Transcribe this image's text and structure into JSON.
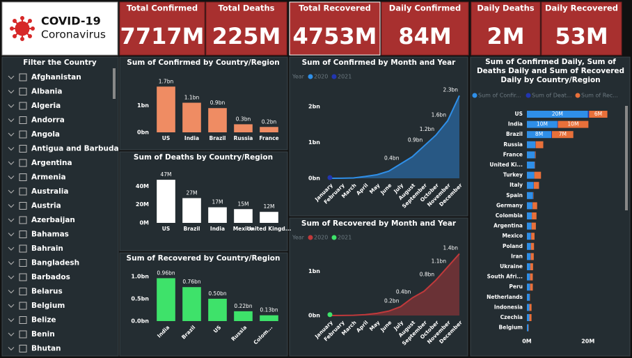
{
  "logo": {
    "title": "COVID-19",
    "subtitle": "Coronavirus"
  },
  "kpis": [
    {
      "label": "Total Confirmed",
      "value": "7717M"
    },
    {
      "label": "Total Deaths",
      "value": "225M"
    },
    {
      "label": "Total Recovered",
      "value": "4753M"
    },
    {
      "label": "Daily Confirmed",
      "value": "84M"
    },
    {
      "label": "Daily Deaths",
      "value": "2M"
    },
    {
      "label": "Daily Recovered",
      "value": "53M"
    }
  ],
  "filter": {
    "title": "Filter the Country",
    "items": [
      "Afghanistan",
      "Albania",
      "Algeria",
      "Andorra",
      "Angola",
      "Antigua and Barbuda",
      "Argentina",
      "Armenia",
      "Australia",
      "Austria",
      "Azerbaijan",
      "Bahamas",
      "Bahrain",
      "Bangladesh",
      "Barbados",
      "Belarus",
      "Belgium",
      "Belize",
      "Benin",
      "Bhutan"
    ]
  },
  "chart_data": [
    {
      "type": "bar",
      "title": "Sum of Confirmed by Country/Region",
      "categories": [
        "US",
        "India",
        "Brazil",
        "Russia",
        "France"
      ],
      "values": [
        1.7,
        1.1,
        0.9,
        0.3,
        0.2
      ],
      "value_labels": [
        "1.7bn",
        "1.1bn",
        "0.9bn",
        "0.3bn",
        "0.2bn"
      ],
      "color": "#ef8c63",
      "ylim": [
        0,
        2.2
      ],
      "yticks": [
        {
          "value": 0,
          "label": "0bn"
        },
        {
          "value": 1,
          "label": "1bn"
        }
      ]
    },
    {
      "type": "bar",
      "title": "Sum of Deaths by Country/Region",
      "categories": [
        "US",
        "Brazil",
        "India",
        "Mexico",
        "United Kingd..."
      ],
      "values": [
        47,
        27,
        17,
        15,
        12
      ],
      "value_labels": [
        "47M",
        "27M",
        "17M",
        "15M",
        "12M"
      ],
      "color": "#ffffff",
      "ylim": [
        0,
        60
      ],
      "yticks": [
        {
          "value": 0,
          "label": "0M"
        },
        {
          "value": 20,
          "label": "20M"
        },
        {
          "value": 40,
          "label": "40M"
        }
      ]
    },
    {
      "type": "bar",
      "title": "Sum of Recovered by Country/Region",
      "categories": [
        "India",
        "Brazil",
        "US",
        "Russia",
        "Colom..."
      ],
      "values": [
        0.96,
        0.76,
        0.5,
        0.22,
        0.13
      ],
      "value_labels": [
        "0.96bn",
        "0.76bn",
        "0.50bn",
        "0.22bn",
        "0.13bn"
      ],
      "color": "#3ee26a",
      "ylim": [
        0,
        1.2
      ],
      "yticks": [
        {
          "value": 0,
          "label": "0.0bn"
        },
        {
          "value": 0.5,
          "label": "0.5bn"
        },
        {
          "value": 1,
          "label": "1.0bn"
        }
      ]
    },
    {
      "type": "area",
      "title": "Sum of Confirmed by Month and Year",
      "legend_title": "Year",
      "categories": [
        "January",
        "February",
        "March",
        "April",
        "May",
        "June",
        "July",
        "August",
        "September",
        "October",
        "November",
        "December"
      ],
      "series": [
        {
          "name": "2020",
          "color": "#2f8fe8",
          "values": [
            0.0,
            0.002,
            0.01,
            0.05,
            0.1,
            0.2,
            0.4,
            0.6,
            0.9,
            1.2,
            1.6,
            2.3
          ],
          "value_labels": [
            null,
            null,
            null,
            null,
            null,
            null,
            "0.4bn",
            null,
            "0.9bn",
            "1.2bn",
            "1.6bn",
            "2.3bn"
          ]
        },
        {
          "name": "2021",
          "color": "#2236b0",
          "values": [
            0.02,
            null,
            null,
            null,
            null,
            null,
            null,
            null,
            null,
            null,
            null,
            null
          ]
        }
      ],
      "ylim": [
        0,
        2.5
      ],
      "yticks": [
        {
          "value": 0,
          "label": "0bn"
        },
        {
          "value": 1,
          "label": "1bn"
        },
        {
          "value": 2,
          "label": "2bn"
        }
      ]
    },
    {
      "type": "area",
      "title": "Sum of Recovered by Month and Year",
      "legend_title": "Year",
      "categories": [
        "January",
        "February",
        "March",
        "April",
        "May",
        "June",
        "July",
        "August",
        "September",
        "October",
        "November",
        "December"
      ],
      "series": [
        {
          "name": "2020",
          "color": "#c0393b",
          "values": [
            0.0,
            0.001,
            0.005,
            0.02,
            0.05,
            0.1,
            0.2,
            0.4,
            0.55,
            0.8,
            1.1,
            1.4
          ],
          "value_labels": [
            null,
            null,
            null,
            null,
            null,
            null,
            "0.2bn",
            "0.4bn",
            null,
            "0.8bn",
            "1.1bn",
            "1.4bn"
          ]
        },
        {
          "name": "2021",
          "color": "#3ee26a",
          "values": [
            0.02,
            null,
            null,
            null,
            null,
            null,
            null,
            null,
            null,
            null,
            null,
            null
          ]
        }
      ],
      "ylim": [
        0,
        1.5
      ],
      "yticks": [
        {
          "value": 0,
          "label": "0bn"
        },
        {
          "value": 1,
          "label": "1bn"
        }
      ]
    },
    {
      "type": "stacked-hbar",
      "title": "Sum of Confirmed Daily, Sum of Deaths Daily and Sum of Recovered Daily by Country/Region",
      "categories": [
        "US",
        "India",
        "Brazil",
        "Russia",
        "France",
        "United Ki...",
        "Turkey",
        "Italy",
        "Spain",
        "Germany",
        "Colombia",
        "Argentina",
        "Mexico",
        "Poland",
        "Iran",
        "Ukraine",
        "South Afri...",
        "Peru",
        "Netherlands",
        "Indonesia",
        "Czechia",
        "Belgium"
      ],
      "series": [
        {
          "name": "Sum of Confir...",
          "color": "#2f8fe8",
          "values": [
            20,
            10,
            8,
            2.8,
            2.6,
            2.5,
            2.4,
            2.2,
            2.0,
            1.8,
            1.6,
            1.5,
            1.3,
            1.3,
            1.2,
            1.1,
            1.0,
            1.0,
            0.9,
            0.8,
            0.8,
            0.5
          ],
          "value_labels": [
            "20M",
            "10M",
            "8M",
            null,
            null,
            null,
            null,
            null,
            null,
            null,
            null,
            null,
            null,
            null,
            null,
            null,
            null,
            null,
            null,
            null,
            null,
            null
          ]
        },
        {
          "name": "Sum of Deat...",
          "color": "#2236b0",
          "values": [
            0.35,
            0.14,
            0.2,
            0.06,
            0.06,
            0.08,
            0.02,
            0.07,
            0.05,
            0.05,
            0.04,
            0.04,
            0.1,
            0.03,
            0.05,
            0.02,
            0.03,
            0.04,
            0.01,
            0.02,
            0.01,
            0.02
          ]
        },
        {
          "name": "Sum of Rec...",
          "color": "#e8703a",
          "values": [
            6,
            10,
            7,
            2.5,
            0.2,
            0.1,
            2.2,
            1.7,
            0.1,
            1.5,
            1.5,
            1.4,
            1.1,
            1.0,
            1.0,
            0.9,
            0.9,
            0.9,
            0.1,
            0.7,
            0.7,
            0.1
          ],
          "value_labels": [
            "6M",
            "10M",
            "7M",
            null,
            null,
            null,
            null,
            null,
            null,
            null,
            null,
            null,
            null,
            null,
            null,
            null,
            null,
            null,
            null,
            null,
            null,
            null
          ]
        }
      ],
      "xlim": [
        0,
        31
      ],
      "xticks": [
        {
          "value": 0,
          "label": "0M"
        },
        {
          "value": 20,
          "label": "20M"
        }
      ]
    }
  ]
}
